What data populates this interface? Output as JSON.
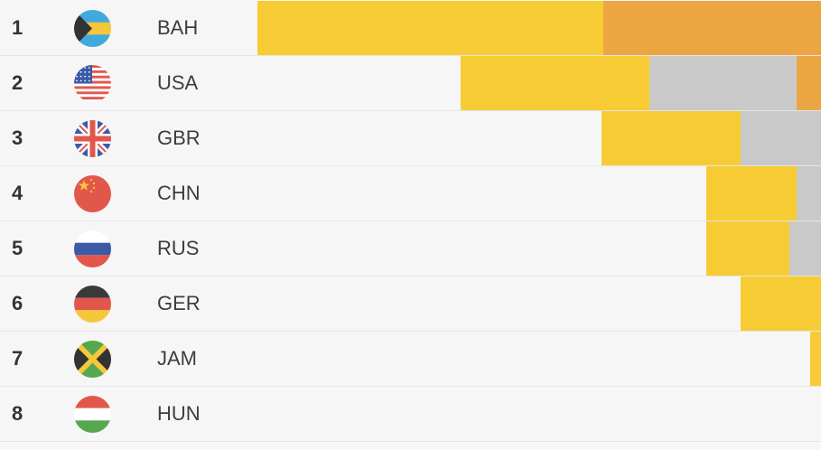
{
  "colors": {
    "gold": "#f7cb33",
    "silver": "#c9c9c9",
    "bronze": "#eba641",
    "row_bg": "#f6f6f6"
  },
  "chart_data": {
    "type": "bar",
    "orientation": "horizontal",
    "stacked": true,
    "stack_order": [
      "bronze",
      "silver",
      "gold"
    ],
    "series_colors": {
      "gold": "#f7cb33",
      "silver": "#c9c9c9",
      "bronze": "#eba641"
    },
    "xlim": [
      0,
      620
    ],
    "rows": [
      {
        "rank": "1",
        "code": "BAH",
        "flag_icon": "bahamas-flag-icon",
        "gold": 382,
        "silver": 0,
        "bronze": 240
      },
      {
        "rank": "2",
        "code": "USA",
        "flag_icon": "usa-flag-icon",
        "gold": 208,
        "silver": 162,
        "bronze": 27
      },
      {
        "rank": "3",
        "code": "GBR",
        "flag_icon": "great-britain-flag-icon",
        "gold": 154,
        "silver": 89,
        "bronze": 0
      },
      {
        "rank": "4",
        "code": "CHN",
        "flag_icon": "china-flag-icon",
        "gold": 100,
        "silver": 27,
        "bronze": 0
      },
      {
        "rank": "5",
        "code": "RUS",
        "flag_icon": "russia-flag-icon",
        "gold": 92,
        "silver": 35,
        "bronze": 0
      },
      {
        "rank": "6",
        "code": "GER",
        "flag_icon": "germany-flag-icon",
        "gold": 89,
        "silver": 0,
        "bronze": 0
      },
      {
        "rank": "7",
        "code": "JAM",
        "flag_icon": "jamaica-flag-icon",
        "gold": 12,
        "silver": 0,
        "bronze": 0
      },
      {
        "rank": "8",
        "code": "HUN",
        "flag_icon": "hungary-flag-icon",
        "gold": 0,
        "silver": 0,
        "bronze": 0
      }
    ]
  }
}
